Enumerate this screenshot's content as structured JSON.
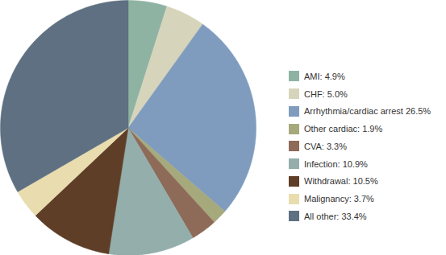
{
  "chart_data": {
    "type": "pie",
    "categories": [
      "AMI: 4.9%",
      "CHF: 5.0%",
      "Arrhythmia/cardiac arrest 26.5%",
      "Other cardiac: 1.9%",
      "CVA: 3.3%",
      "Infection: 10.9%",
      "Withdrawal: 10.5%",
      "Malignancy: 3.7%",
      "All other: 33.4%"
    ],
    "values": [
      4.9,
      5.0,
      26.5,
      1.9,
      3.3,
      10.9,
      10.5,
      3.7,
      33.4
    ],
    "colors": [
      "#8fb3a3",
      "#d7d4bc",
      "#7f9cbe",
      "#a6a97c",
      "#8e6a58",
      "#93aeab",
      "#5f3e27",
      "#e9ddb0",
      "#5e7081"
    ],
    "legend": "right"
  }
}
